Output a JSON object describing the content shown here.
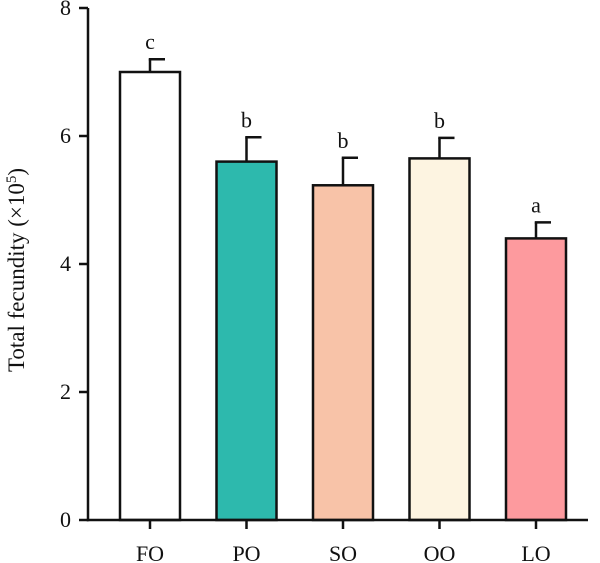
{
  "chart_data": {
    "type": "bar",
    "categories": [
      "FO",
      "PO",
      "SO",
      "OO",
      "LO"
    ],
    "values": [
      7.0,
      5.6,
      5.23,
      5.65,
      4.4
    ],
    "errors": [
      0.2,
      0.38,
      0.43,
      0.32,
      0.25
    ],
    "significance": [
      "c",
      "b",
      "b",
      "b",
      "a"
    ],
    "colors": [
      "#ffffff",
      "#2db9ad",
      "#f8c3a8",
      "#fdf4e1",
      "#fd9a9e"
    ],
    "bar_edge_color": "#111111",
    "ylabel_main": "Total fecundity (×10",
    "ylabel_exp": "5",
    "ylabel_close": ")",
    "ylim": [
      0,
      8
    ],
    "yticks": [
      "0",
      "2",
      "4",
      "6",
      "8"
    ],
    "grid": false,
    "legend": "none"
  }
}
